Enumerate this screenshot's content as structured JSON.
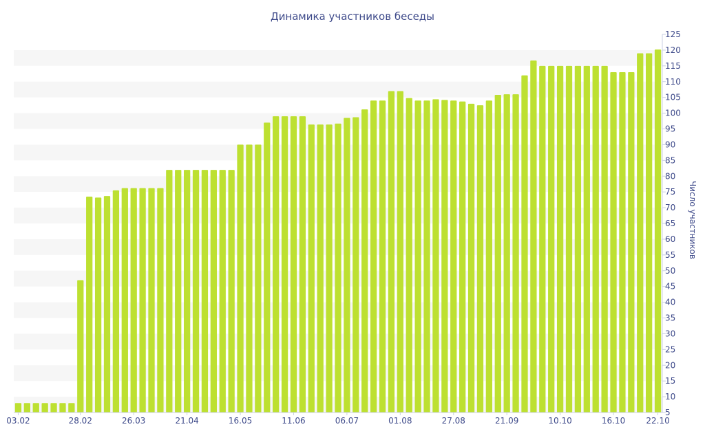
{
  "chart_data": {
    "type": "bar",
    "title": "Динамика участников беседы",
    "xlabel": "",
    "ylabel": "Число участников",
    "ylim": [
      5,
      125
    ],
    "y_ticks": [
      5,
      10,
      15,
      20,
      25,
      30,
      35,
      40,
      45,
      50,
      55,
      60,
      65,
      70,
      75,
      80,
      85,
      90,
      95,
      100,
      105,
      110,
      115,
      120,
      125
    ],
    "y_axis_side": "right",
    "grid": "alternating horizontal bands",
    "legend": "none",
    "x_tick_labels": [
      {
        "index": 0,
        "label": "03.02"
      },
      {
        "index": 7,
        "label": "28.02"
      },
      {
        "index": 13,
        "label": "26.03"
      },
      {
        "index": 19,
        "label": "21.04"
      },
      {
        "index": 25,
        "label": "16.05"
      },
      {
        "index": 31,
        "label": "11.06"
      },
      {
        "index": 37,
        "label": "06.07"
      },
      {
        "index": 43,
        "label": "01.08"
      },
      {
        "index": 49,
        "label": "27.08"
      },
      {
        "index": 55,
        "label": "21.09"
      },
      {
        "index": 61,
        "label": "10.10"
      },
      {
        "index": 67,
        "label": "16.10"
      },
      {
        "index": 72,
        "label": "22.10"
      }
    ],
    "values": [
      8,
      8,
      8,
      8,
      8,
      8,
      8,
      47,
      73.5,
      73.2,
      73.7,
      75.5,
      76.2,
      76.2,
      76.2,
      76.2,
      76.2,
      82,
      82,
      82,
      82,
      82,
      82,
      82,
      82,
      90,
      90,
      90,
      97,
      99,
      99,
      99,
      99,
      96.4,
      96.4,
      96.4,
      96.7,
      98.5,
      98.7,
      101.2,
      104,
      104,
      107,
      107,
      104.8,
      104,
      104,
      104.4,
      104.2,
      104,
      103.7,
      103,
      102.5,
      104,
      105.8,
      106,
      106,
      112,
      116.7,
      115,
      115,
      115,
      115,
      115,
      115,
      115,
      115,
      113,
      113,
      113,
      119,
      119,
      120.2
    ],
    "bar_color": "#bde031",
    "text_color": "#3e4a8a",
    "band_color": "#f6f6f6"
  }
}
